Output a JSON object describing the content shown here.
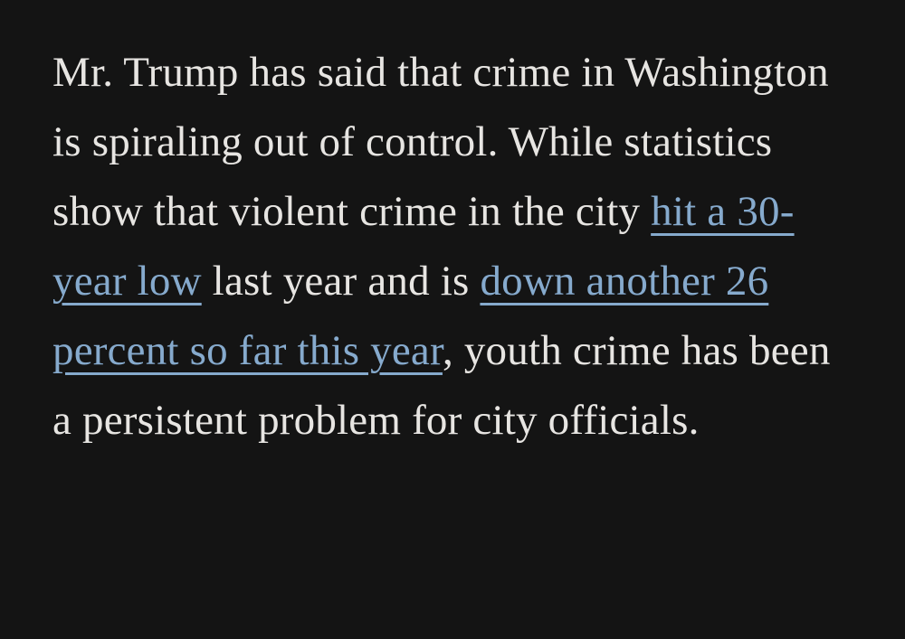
{
  "colors": {
    "background": "#141414",
    "text": "#e7e5e2",
    "link": "#86aacd"
  },
  "paragraph": {
    "segments": {
      "text1": "Mr. Trump has said that crime in Washington is spiraling out of control. While statistics show that violent crime in the city ",
      "link1": "hit a 30-year low",
      "text2": " last year and is ",
      "link2": "down another 26 percent so far this year",
      "text3": ", youth crime has been a persistent problem for city officials."
    }
  }
}
